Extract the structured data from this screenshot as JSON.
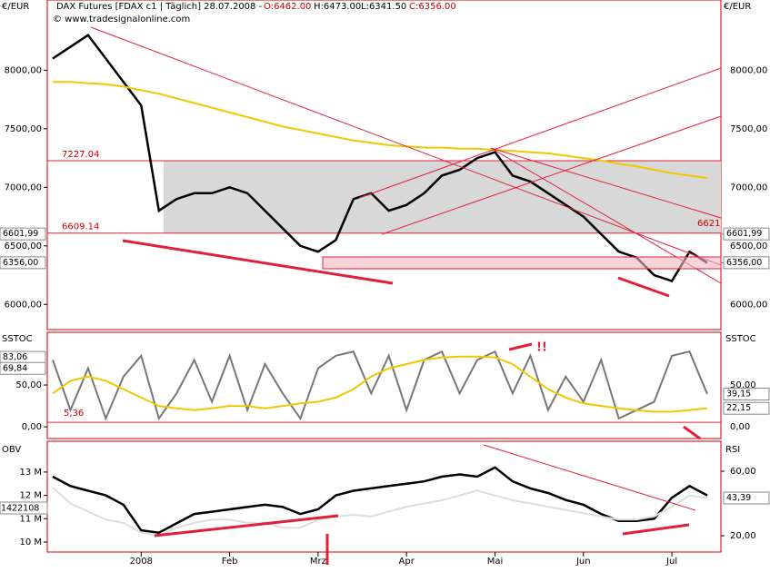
{
  "chart_data": [
    {
      "type": "line",
      "currency": "€/EUR",
      "title": "DAX Futures [FDAX c1 | Täglich] 28.07.2008 -",
      "ohlc": [
        "O:6462.00",
        "H:6473.00",
        "L:6341.50",
        "C:6356.00"
      ],
      "copyright": "© www.tradesignalonline.com",
      "ylim": [
        5785,
        8600
      ],
      "yticks": [
        {
          "value": 6000,
          "label": "6000,00"
        },
        {
          "value": 6500,
          "label": "6500,00"
        },
        {
          "value": 7000,
          "label": "7000,00"
        },
        {
          "value": 7500,
          "label": "7500,00"
        },
        {
          "value": 8000,
          "label": "8000,00"
        }
      ],
      "levels": [
        7227.04,
        6609.14
      ],
      "annotation": 6621,
      "price_boxes": [
        {
          "value": 6601.99,
          "label": "6601,99"
        },
        {
          "value": 6356,
          "label": "6356,00"
        }
      ],
      "series": [
        {
          "color": "#000000",
          "values": [
            8100,
            8200,
            8300,
            8100,
            7900,
            7700,
            6800,
            6900,
            6950,
            6950,
            7000,
            6950,
            6800,
            6650,
            6500,
            6450,
            6550,
            6900,
            6950,
            6800,
            6850,
            6950,
            7100,
            7150,
            7250,
            7300,
            7100,
            7050,
            6950,
            6850,
            6750,
            6600,
            6450,
            6400,
            6250,
            6200,
            6450,
            6356
          ]
        },
        {
          "color": "#f0c800",
          "values": [
            7900,
            7900,
            7890,
            7880,
            7860,
            7830,
            7800,
            7760,
            7720,
            7680,
            7640,
            7600,
            7560,
            7520,
            7490,
            7460,
            7430,
            7400,
            7380,
            7360,
            7350,
            7340,
            7340,
            7330,
            7330,
            7320,
            7310,
            7300,
            7290,
            7270,
            7250,
            7230,
            7200,
            7180,
            7150,
            7120,
            7100,
            7080
          ]
        }
      ]
    },
    {
      "type": "line",
      "label": "SSTOC",
      "ylim": [
        -14,
        113
      ],
      "yticks": [
        {
          "value": 0,
          "label": "0,00"
        },
        {
          "value": 50,
          "label": "50,00"
        }
      ],
      "left_boxes": [
        {
          "value": 83.06,
          "label": "83,06"
        },
        {
          "value": 69.84,
          "label": "69,84"
        }
      ],
      "level": {
        "value": 5.36,
        "label": "5,36"
      },
      "right_boxes": [
        {
          "value": 39.15,
          "label": "39,15"
        },
        {
          "value": 22.15,
          "label": "22,15"
        }
      ],
      "annotation": "!!",
      "series": [
        {
          "color": "#777777",
          "values": [
            80,
            20,
            70,
            10,
            60,
            85,
            10,
            40,
            80,
            30,
            85,
            20,
            75,
            40,
            10,
            70,
            85,
            90,
            40,
            85,
            20,
            80,
            90,
            40,
            80,
            90,
            40,
            85,
            20,
            60,
            30,
            80,
            10,
            20,
            30,
            85,
            90,
            39.15
          ]
        },
        {
          "color": "#f0c800",
          "values": [
            40,
            55,
            60,
            55,
            45,
            35,
            25,
            22,
            20,
            22,
            25,
            25,
            22,
            25,
            28,
            30,
            35,
            45,
            60,
            70,
            75,
            80,
            83,
            84,
            84,
            83,
            75,
            60,
            45,
            35,
            28,
            25,
            22,
            20,
            18,
            18,
            20,
            22.15
          ]
        }
      ]
    },
    {
      "type": "line",
      "label": "OBV",
      "label2": "RSI",
      "categories": [
        null,
        null,
        null,
        null,
        null,
        "2008",
        null,
        null,
        null,
        null,
        "Feb",
        null,
        null,
        null,
        null,
        "Mrz",
        null,
        null,
        null,
        null,
        "Apr",
        null,
        null,
        null,
        null,
        "Mai",
        null,
        null,
        null,
        null,
        "Jun",
        null,
        null,
        null,
        null,
        "Jul",
        null,
        null
      ],
      "ylim": [
        9570000,
        14320000
      ],
      "yticks": [
        {
          "value": 10000000,
          "label": "10 M"
        },
        {
          "value": 11000000,
          "label": "11 M"
        },
        {
          "value": 12000000,
          "label": "12 M"
        },
        {
          "value": 13000000,
          "label": "13 M"
        }
      ],
      "y2lim": [
        9.9,
        78.6
      ],
      "y2ticks": [
        {
          "value": 20,
          "label": "20,00"
        },
        {
          "value": 60,
          "label": "60,00"
        }
      ],
      "left_box": 1422108,
      "right_box": {
        "value": 43.39,
        "label": "43,39"
      },
      "series": [
        {
          "color": "#000000",
          "values": [
            12800000,
            12400000,
            12200000,
            12000000,
            11600000,
            10500000,
            10400000,
            10800000,
            11200000,
            11300000,
            11400000,
            11500000,
            11600000,
            11500000,
            11200000,
            11400000,
            12000000,
            12200000,
            12300000,
            12400000,
            12500000,
            12600000,
            12800000,
            12900000,
            12800000,
            13200000,
            12600000,
            12300000,
            12100000,
            11800000,
            11600000,
            11200000,
            10900000,
            10900000,
            11000000,
            11900000,
            12400000,
            12000000
          ]
        },
        {
          "color": "#dddddd",
          "axis": "y2",
          "values": [
            50,
            40,
            35,
            30,
            28,
            22,
            20,
            25,
            28,
            30,
            30,
            28,
            28,
            25,
            25,
            30,
            32,
            33,
            32,
            35,
            38,
            40,
            42,
            45,
            48,
            45,
            42,
            40,
            38,
            36,
            34,
            32,
            30,
            30,
            32,
            38,
            45,
            43.39
          ]
        }
      ]
    }
  ]
}
